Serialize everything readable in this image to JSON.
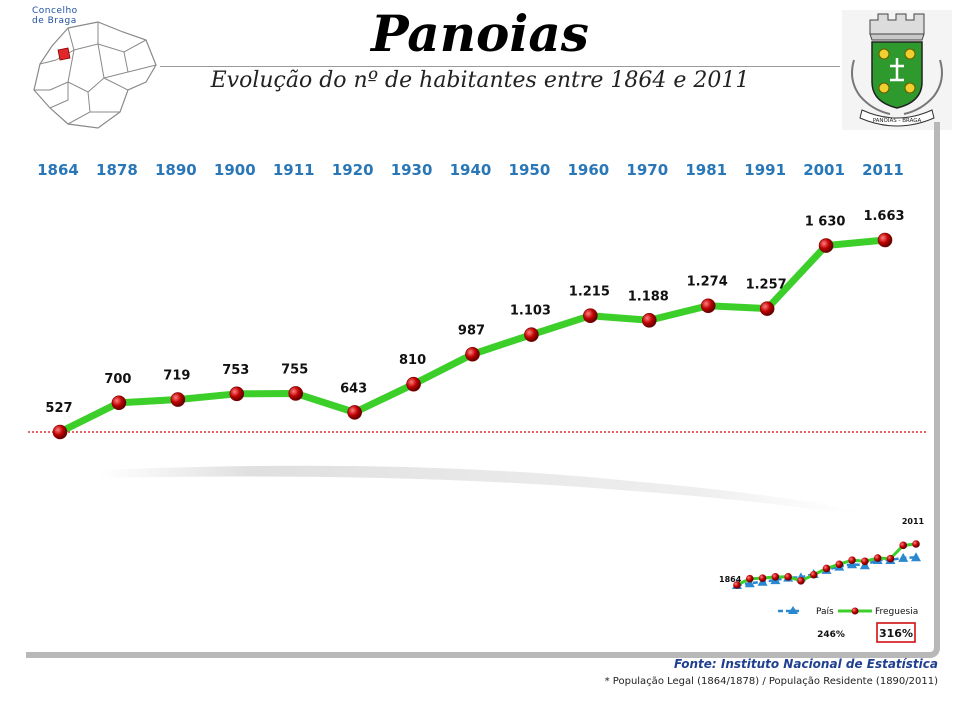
{
  "header": {
    "title": "Panoias",
    "subtitle": "Evolução do nº de habitantes entre 1864 e 2011",
    "map_label_line1": "Concelho",
    "map_label_line2": "de Braga",
    "coat_of_arms_text": "PANOIAS - BRAGA"
  },
  "colors": {
    "line": "#3ccf2a",
    "marker": "#c00000",
    "year_label": "#2a77b8",
    "baseline": "#e03030",
    "mini_country": "#2a88d0"
  },
  "chart_data": [
    {
      "type": "line",
      "title": "Panoias",
      "subtitle": "Evolução do nº de habitantes entre 1864 e 2011",
      "categories": [
        "1864",
        "1878",
        "1890",
        "1900",
        "1911",
        "1920",
        "1930",
        "1940",
        "1950",
        "1960",
        "1970",
        "1981",
        "1991",
        "2001",
        "2011"
      ],
      "series": [
        {
          "values": [
            527,
            700,
            719,
            753,
            755,
            643,
            810,
            987,
            1103,
            1215,
            1188,
            1274,
            1257,
            1630,
            1663
          ],
          "labels": [
            "527",
            "700",
            "719",
            "753",
            "755",
            "643",
            "810",
            "987",
            "1.103",
            "1.215",
            "1.188",
            "1.274",
            "1.257",
            "1 630",
            "1.663"
          ]
        }
      ],
      "reference_line": 527,
      "ylim": [
        0,
        1800
      ]
    },
    {
      "type": "line",
      "categories": [
        "1864",
        "1878",
        "1890",
        "1900",
        "1911",
        "1920",
        "1930",
        "1940",
        "1950",
        "1960",
        "1970",
        "1981",
        "1991",
        "2001",
        "2011"
      ],
      "start_label": "1864",
      "end_label": "2011",
      "series": [
        {
          "name": "País",
          "growth": "246%",
          "values": [
            1.0,
            1.09,
            1.17,
            1.26,
            1.39,
            1.4,
            1.58,
            1.8,
            1.97,
            2.09,
            2.04,
            2.32,
            2.32,
            2.43,
            2.46
          ]
        },
        {
          "name": "Freguesia",
          "growth": "316%",
          "values": [
            1.0,
            1.33,
            1.36,
            1.43,
            1.43,
            1.22,
            1.54,
            1.87,
            2.09,
            2.31,
            2.25,
            2.42,
            2.39,
            3.09,
            3.16
          ]
        }
      ]
    }
  ],
  "footer": {
    "source": "Fonte: Instituto Nacional de Estatística",
    "note": "* População Legal (1864/1878) /  População Residente (1890/2011)"
  }
}
